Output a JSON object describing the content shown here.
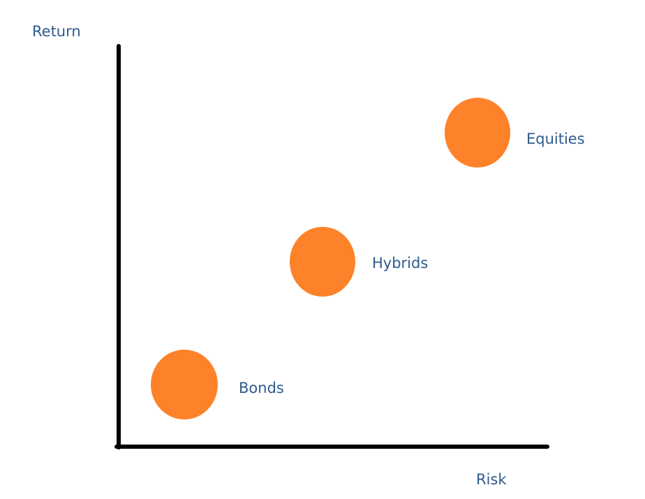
{
  "axes": {
    "y_label": "Return",
    "x_label": "Risk"
  },
  "nodes": [
    {
      "label": "Bonds"
    },
    {
      "label": "Hybrids"
    },
    {
      "label": "Equities"
    }
  ]
}
